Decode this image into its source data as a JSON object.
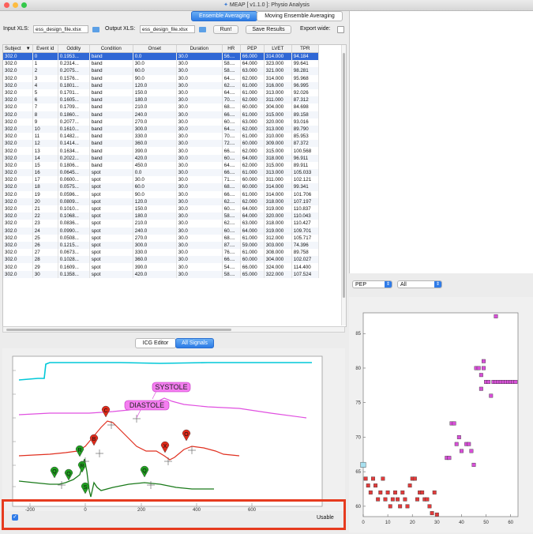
{
  "window": {
    "title": "MEAP [ v1.1.0 ]: Physio Analysis"
  },
  "tabs": [
    "Ensemble Averaging",
    "Moving Ensemble Averaging"
  ],
  "toolbar": {
    "input_label": "Input XLS:",
    "input_value": "ess_design_file.xlsx",
    "output_label": "Output XLS:",
    "output_value": "ess_design_file.xlsx",
    "run_label": "Run!",
    "save_label": "Save Results",
    "export_label": "Export wide:"
  },
  "table": {
    "headers": [
      "Subject",
      "Event id",
      "Oddity",
      "Condition",
      "Onset",
      "Duration",
      "HR",
      "PEP",
      "LVET",
      "TPR"
    ],
    "sort_icon": "sort-down-icon",
    "rows": [
      [
        "302.0",
        "0",
        "0.1953...",
        "band",
        "0.0",
        "30.0",
        "56....",
        "66.000",
        "314.000",
        "94.184"
      ],
      [
        "302.0",
        "1",
        "0.2314...",
        "band",
        "30.0",
        "30.0",
        "58....",
        "64.000",
        "323.000",
        "99.641"
      ],
      [
        "302.0",
        "2",
        "0.2075...",
        "band",
        "60.0",
        "30.0",
        "58....",
        "63.000",
        "321.000",
        "98.281"
      ],
      [
        "302.0",
        "3",
        "0.1576...",
        "band",
        "90.0",
        "30.0",
        "64....",
        "62.000",
        "314.000",
        "95.968"
      ],
      [
        "302.0",
        "4",
        "0.1801...",
        "band",
        "120.0",
        "30.0",
        "62....",
        "61.000",
        "316.000",
        "96.995"
      ],
      [
        "302.0",
        "5",
        "0.1701...",
        "band",
        "150.0",
        "30.0",
        "64....",
        "61.000",
        "313.000",
        "92.026"
      ],
      [
        "302.0",
        "6",
        "0.1605...",
        "band",
        "180.0",
        "30.0",
        "70....",
        "62.000",
        "311.000",
        "87.312"
      ],
      [
        "302.0",
        "7",
        "0.1709...",
        "band",
        "210.0",
        "30.0",
        "68....",
        "60.000",
        "304.000",
        "84.698"
      ],
      [
        "302.0",
        "8",
        "0.1860...",
        "band",
        "240.0",
        "30.0",
        "66....",
        "61.000",
        "315.000",
        "89.158"
      ],
      [
        "302.0",
        "9",
        "0.2077...",
        "band",
        "270.0",
        "30.0",
        "60....",
        "63.000",
        "320.000",
        "93.016"
      ],
      [
        "302.0",
        "10",
        "0.1610...",
        "band",
        "300.0",
        "30.0",
        "64....",
        "62.000",
        "313.000",
        "89.790"
      ],
      [
        "302.0",
        "11",
        "0.1482...",
        "band",
        "330.0",
        "30.0",
        "70....",
        "61.000",
        "310.000",
        "85.953"
      ],
      [
        "302.0",
        "12",
        "0.1414...",
        "band",
        "360.0",
        "30.0",
        "72....",
        "60.000",
        "309.000",
        "87.372"
      ],
      [
        "302.0",
        "13",
        "0.1634...",
        "band",
        "390.0",
        "30.0",
        "66....",
        "62.000",
        "315.000",
        "100.568"
      ],
      [
        "302.0",
        "14",
        "0.2022...",
        "band",
        "420.0",
        "30.0",
        "60....",
        "64.000",
        "318.000",
        "96.911"
      ],
      [
        "302.0",
        "15",
        "0.1806...",
        "band",
        "450.0",
        "30.0",
        "64....",
        "62.000",
        "315.000",
        "89.911"
      ],
      [
        "302.0",
        "16",
        "0.0645...",
        "spot",
        "0.0",
        "30.0",
        "66....",
        "61.000",
        "313.000",
        "105.033"
      ],
      [
        "302.0",
        "17",
        "0.0600...",
        "spot",
        "30.0",
        "30.0",
        "71....",
        "60.000",
        "311.000",
        "102.121"
      ],
      [
        "302.0",
        "18",
        "0.0575...",
        "spot",
        "60.0",
        "30.0",
        "68....",
        "60.000",
        "314.000",
        "99.341"
      ],
      [
        "302.0",
        "19",
        "0.0596...",
        "spot",
        "90.0",
        "30.0",
        "66....",
        "61.000",
        "314.000",
        "101.706"
      ],
      [
        "302.0",
        "20",
        "0.0809...",
        "spot",
        "120.0",
        "30.0",
        "62....",
        "62.000",
        "318.000",
        "107.197"
      ],
      [
        "302.0",
        "21",
        "0.1010...",
        "spot",
        "150.0",
        "30.0",
        "60....",
        "64.000",
        "319.000",
        "110.837"
      ],
      [
        "302.0",
        "22",
        "0.1068...",
        "spot",
        "180.0",
        "30.0",
        "58....",
        "64.000",
        "320.000",
        "110.043"
      ],
      [
        "302.0",
        "23",
        "0.0836...",
        "spot",
        "210.0",
        "30.0",
        "62....",
        "63.000",
        "318.000",
        "110.427"
      ],
      [
        "302.0",
        "24",
        "0.0990...",
        "spot",
        "240.0",
        "30.0",
        "60....",
        "64.000",
        "319.000",
        "109.701"
      ],
      [
        "302.0",
        "25",
        "0.0508...",
        "spot",
        "270.0",
        "30.0",
        "68....",
        "61.000",
        "312.000",
        "105.717"
      ],
      [
        "302.0",
        "26",
        "0.1215...",
        "spot",
        "300.0",
        "30.0",
        "87....",
        "59.000",
        "303.000",
        "74.396"
      ],
      [
        "302.0",
        "27",
        "0.0673...",
        "spot",
        "330.0",
        "30.0",
        "76....",
        "61.000",
        "308.000",
        "89.758"
      ],
      [
        "302.0",
        "28",
        "0.1028...",
        "spot",
        "360.0",
        "30.0",
        "66....",
        "60.000",
        "304.000",
        "102.027"
      ],
      [
        "302.0",
        "29",
        "0.1609...",
        "spot",
        "390.0",
        "30.0",
        "54....",
        "66.000",
        "324.000",
        "114.400"
      ],
      [
        "302.0",
        "30",
        "0.1358...",
        "spot",
        "420.0",
        "30.0",
        "58....",
        "65.000",
        "322.000",
        "107.524"
      ]
    ]
  },
  "bottom_tabs": [
    "ICG Editor",
    "All Signals"
  ],
  "signals": {
    "labels": {
      "systole": "SYSTOLE",
      "diastole": "DIASTOLE"
    },
    "markers": [
      "Q",
      "R",
      "C",
      "B",
      "X",
      "O",
      "S"
    ],
    "x_ticks": [
      "-200",
      "0",
      "200",
      "400",
      "600"
    ],
    "colors": {
      "icg": "#00c8d8",
      "dzdt": "#e050e0",
      "ecg": "#e03020",
      "bp": "#1a7a1a",
      "marker": "#e02a1a",
      "marker2": "#20a020"
    }
  },
  "usable": {
    "label": "Usable",
    "checked": true
  },
  "selectors": {
    "x_value": "PEP",
    "condition_value": "All"
  },
  "scatter": {
    "xlabel": "",
    "ylabel": "",
    "x_ticks": [
      "0",
      "10",
      "20",
      "30",
      "40",
      "50",
      "60"
    ],
    "y_ticks": [
      "60",
      "65",
      "70",
      "75",
      "80",
      "85"
    ],
    "colors": {
      "band": "#e23b3b",
      "spot": "#d84fd8",
      "highlight": "#a8e0f0"
    }
  },
  "chart_data": {
    "type": "scatter",
    "xlabel": "",
    "ylabel": "",
    "xlim": [
      0,
      63
    ],
    "ylim": [
      58.5,
      88
    ],
    "series": [
      {
        "name": "",
        "color": "#d84fd8",
        "points": [
          [
            34,
            67
          ],
          [
            35,
            67
          ],
          [
            36,
            72
          ],
          [
            37,
            72
          ],
          [
            38,
            69
          ],
          [
            39,
            70
          ],
          [
            40,
            68
          ],
          [
            42,
            69
          ],
          [
            43,
            69
          ],
          [
            44,
            68
          ],
          [
            45,
            66
          ],
          [
            46,
            80
          ],
          [
            47,
            80
          ],
          [
            48,
            79
          ],
          [
            48,
            77
          ],
          [
            49,
            81
          ],
          [
            49,
            80
          ],
          [
            50,
            78
          ],
          [
            51,
            78
          ],
          [
            52,
            76
          ],
          [
            53,
            78
          ],
          [
            54,
            78
          ],
          [
            54,
            87.5
          ],
          [
            55,
            78
          ],
          [
            56,
            78
          ],
          [
            57,
            78
          ],
          [
            58,
            78
          ],
          [
            59,
            78
          ],
          [
            60,
            78
          ],
          [
            61,
            78
          ],
          [
            62,
            78
          ]
        ]
      },
      {
        "name": "",
        "color": "#e23b3b",
        "points": [
          [
            1,
            64
          ],
          [
            2,
            63
          ],
          [
            3,
            62
          ],
          [
            4,
            64
          ],
          [
            5,
            63
          ],
          [
            6,
            61
          ],
          [
            7,
            62
          ],
          [
            8,
            64
          ],
          [
            9,
            61
          ],
          [
            10,
            62
          ],
          [
            11,
            60
          ],
          [
            12,
            61
          ],
          [
            13,
            62
          ],
          [
            14,
            61
          ],
          [
            15,
            60
          ],
          [
            16,
            62
          ],
          [
            17,
            61
          ],
          [
            18,
            60
          ],
          [
            19,
            63
          ],
          [
            20,
            64
          ],
          [
            21,
            64
          ],
          [
            22,
            61
          ],
          [
            23,
            62
          ],
          [
            24,
            62
          ],
          [
            25,
            61
          ],
          [
            26,
            61
          ],
          [
            27,
            60
          ],
          [
            28,
            59
          ],
          [
            29,
            62
          ],
          [
            30,
            58.8
          ]
        ]
      },
      {
        "name": "",
        "color": "#a8e0f0",
        "points": [
          [
            0,
            66
          ]
        ]
      }
    ]
  }
}
